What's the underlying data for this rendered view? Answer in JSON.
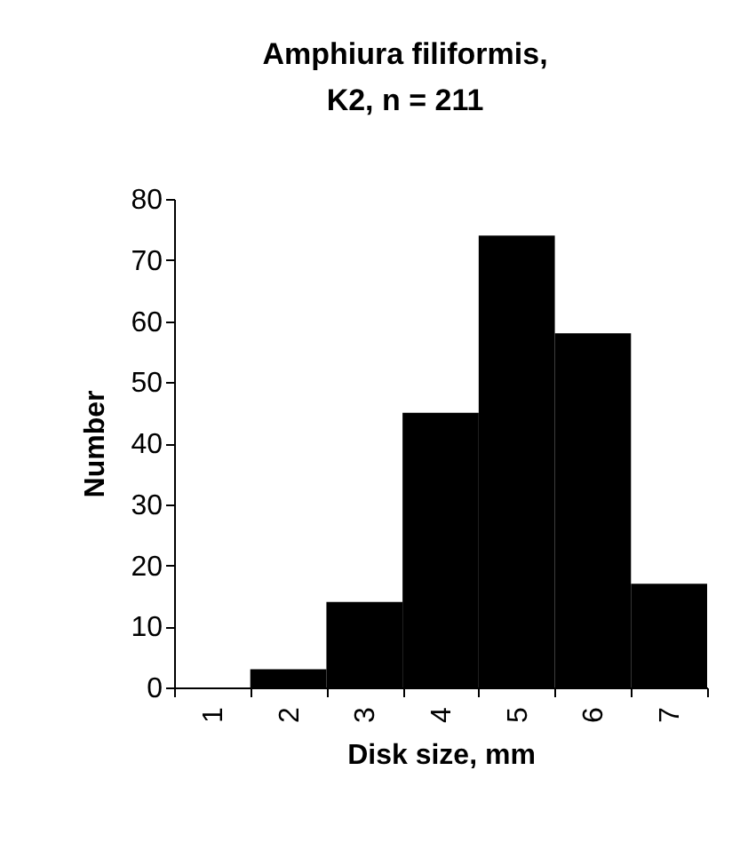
{
  "chart_data": {
    "type": "bar",
    "title": "Amphiura filiformis,\nK2, n = 211",
    "xlabel": "Disk size, mm",
    "ylabel": "Number",
    "categories": [
      "1",
      "2",
      "3",
      "4",
      "5",
      "6",
      "7"
    ],
    "values": [
      0,
      3,
      14,
      45,
      74,
      58,
      17
    ],
    "color": "#000000",
    "ylim": [
      0,
      80
    ],
    "yticks": [
      0,
      10,
      20,
      30,
      40,
      50,
      60,
      70,
      80
    ],
    "grid": false
  }
}
